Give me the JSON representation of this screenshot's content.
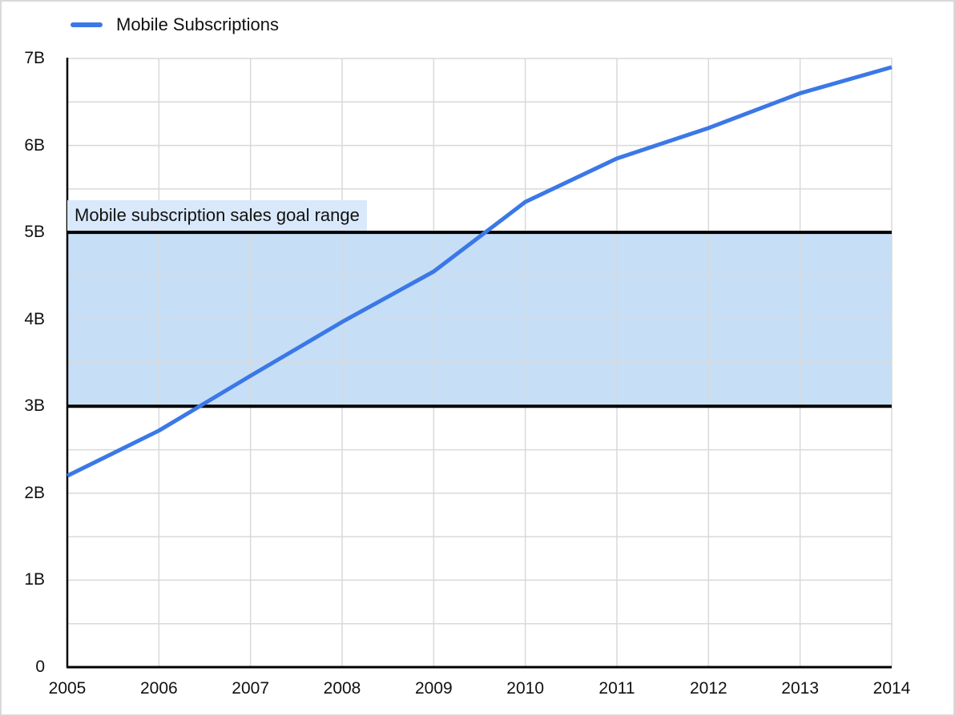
{
  "legend": {
    "items": [
      {
        "label": "Mobile Subscriptions",
        "color": "#3b78e7"
      }
    ]
  },
  "colors": {
    "background": "#ffffff",
    "widget_border": "#d9d9d9",
    "grid": "#d9d9d9",
    "axis": "#000000",
    "text": "#111111",
    "series": "#3b78e7",
    "band_fill": "#c6dff7",
    "band_border": "#000000",
    "annotation_bg": "#d9e9fb"
  },
  "chart_data": {
    "type": "line",
    "title": "",
    "xlabel": "",
    "ylabel": "",
    "x": [
      2005,
      2006,
      2007,
      2008,
      2009,
      2010,
      2011,
      2012,
      2013,
      2014
    ],
    "x_tick_labels": [
      "2005",
      "2006",
      "2007",
      "2008",
      "2009",
      "2010",
      "2011",
      "2012",
      "2013",
      "2014"
    ],
    "series": [
      {
        "name": "Mobile Subscriptions",
        "color": "#3b78e7",
        "values": [
          2.2,
          2.72,
          3.35,
          3.97,
          4.55,
          5.35,
          5.85,
          6.2,
          6.6,
          6.9
        ]
      }
    ],
    "ylim": [
      0,
      7
    ],
    "y_major_step": 1,
    "y_minor_step": 0.5,
    "y_tick_labels": [
      "0",
      "1B",
      "2B",
      "3B",
      "4B",
      "5B",
      "6B",
      "7B"
    ],
    "grid": true,
    "legend_position": "top-left",
    "band": {
      "from": 3,
      "to": 5,
      "label": "Mobile subscription sales goal range"
    }
  }
}
